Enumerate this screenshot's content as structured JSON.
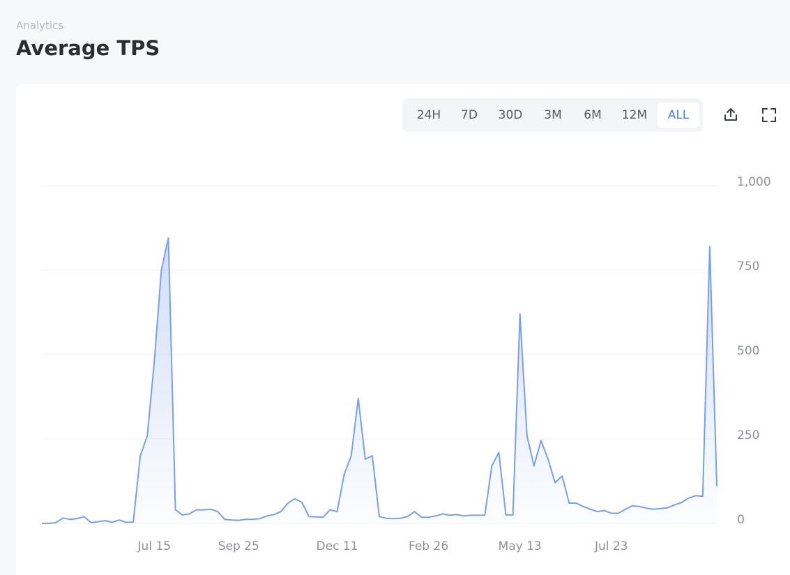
{
  "header": {
    "breadcrumb": "Analytics",
    "title": "Average TPS"
  },
  "range_buttons": [
    "24H",
    "7D",
    "30D",
    "3M",
    "6M",
    "12M",
    "ALL"
  ],
  "active_range": "ALL",
  "chart_data": {
    "type": "area",
    "color": "#7b9fe6",
    "categories": [
      null,
      null,
      null,
      null,
      null,
      null,
      null,
      null,
      null,
      null,
      null,
      null,
      null,
      null,
      null,
      null,
      "Jul 15",
      null,
      null,
      null,
      null,
      null,
      null,
      null,
      null,
      null,
      null,
      null,
      "Sep 25",
      null,
      null,
      null,
      null,
      null,
      null,
      null,
      null,
      null,
      null,
      null,
      null,
      null,
      "Dec 11",
      null,
      null,
      null,
      null,
      null,
      null,
      null,
      null,
      null,
      null,
      null,
      null,
      "Feb 26",
      null,
      null,
      null,
      null,
      null,
      null,
      null,
      null,
      null,
      null,
      null,
      null,
      "May 13",
      null,
      null,
      null,
      null,
      null,
      null,
      null,
      null,
      null,
      null,
      null,
      null,
      "Jul 23",
      null,
      null,
      null,
      null,
      null,
      null,
      null,
      null,
      null,
      null,
      null,
      null,
      null,
      null,
      null
    ],
    "values": [
      0,
      0,
      2,
      16,
      12,
      14,
      20,
      2,
      5,
      8,
      3,
      10,
      3,
      4,
      200,
      260,
      480,
      750,
      845,
      40,
      25,
      28,
      40,
      40,
      42,
      35,
      12,
      10,
      9,
      12,
      12,
      14,
      22,
      26,
      35,
      60,
      73,
      62,
      20,
      19,
      18,
      40,
      35,
      145,
      200,
      370,
      190,
      200,
      20,
      15,
      14,
      15,
      20,
      35,
      18,
      18,
      22,
      28,
      24,
      26,
      22,
      24,
      24,
      24,
      170,
      210,
      25,
      25,
      620,
      260,
      170,
      245,
      190,
      120,
      140,
      60,
      60,
      50,
      42,
      35,
      38,
      30,
      30,
      42,
      52,
      50,
      45,
      42,
      44,
      46,
      55,
      62,
      75,
      82,
      80,
      820,
      110
    ],
    "ylim": [
      0,
      1000
    ],
    "yticks": [
      0,
      250,
      500,
      750,
      {
        "value": 1000,
        "label": "1,000"
      }
    ],
    "grid": true
  }
}
